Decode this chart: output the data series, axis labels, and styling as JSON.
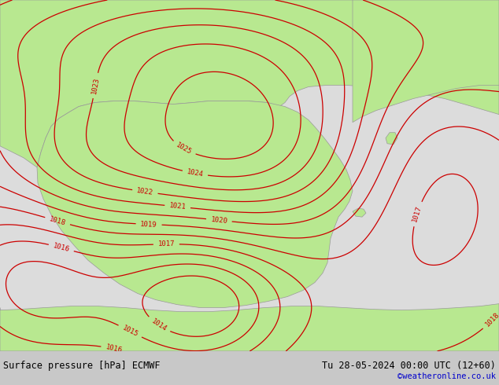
{
  "title_left": "Surface pressure [hPa] ECMWF",
  "title_right": "Tu 28-05-2024 00:00 UTC (12+60)",
  "credit": "©weatheronline.co.uk",
  "bg_color_land": "#b8e890",
  "bg_color_sea": "#dcdcdc",
  "contour_color": "#cc0000",
  "bottom_bar_color": "#c8c8c8",
  "text_color": "#000000",
  "credit_color": "#0000cc",
  "figsize": [
    6.34,
    4.9
  ],
  "dpi": 100
}
